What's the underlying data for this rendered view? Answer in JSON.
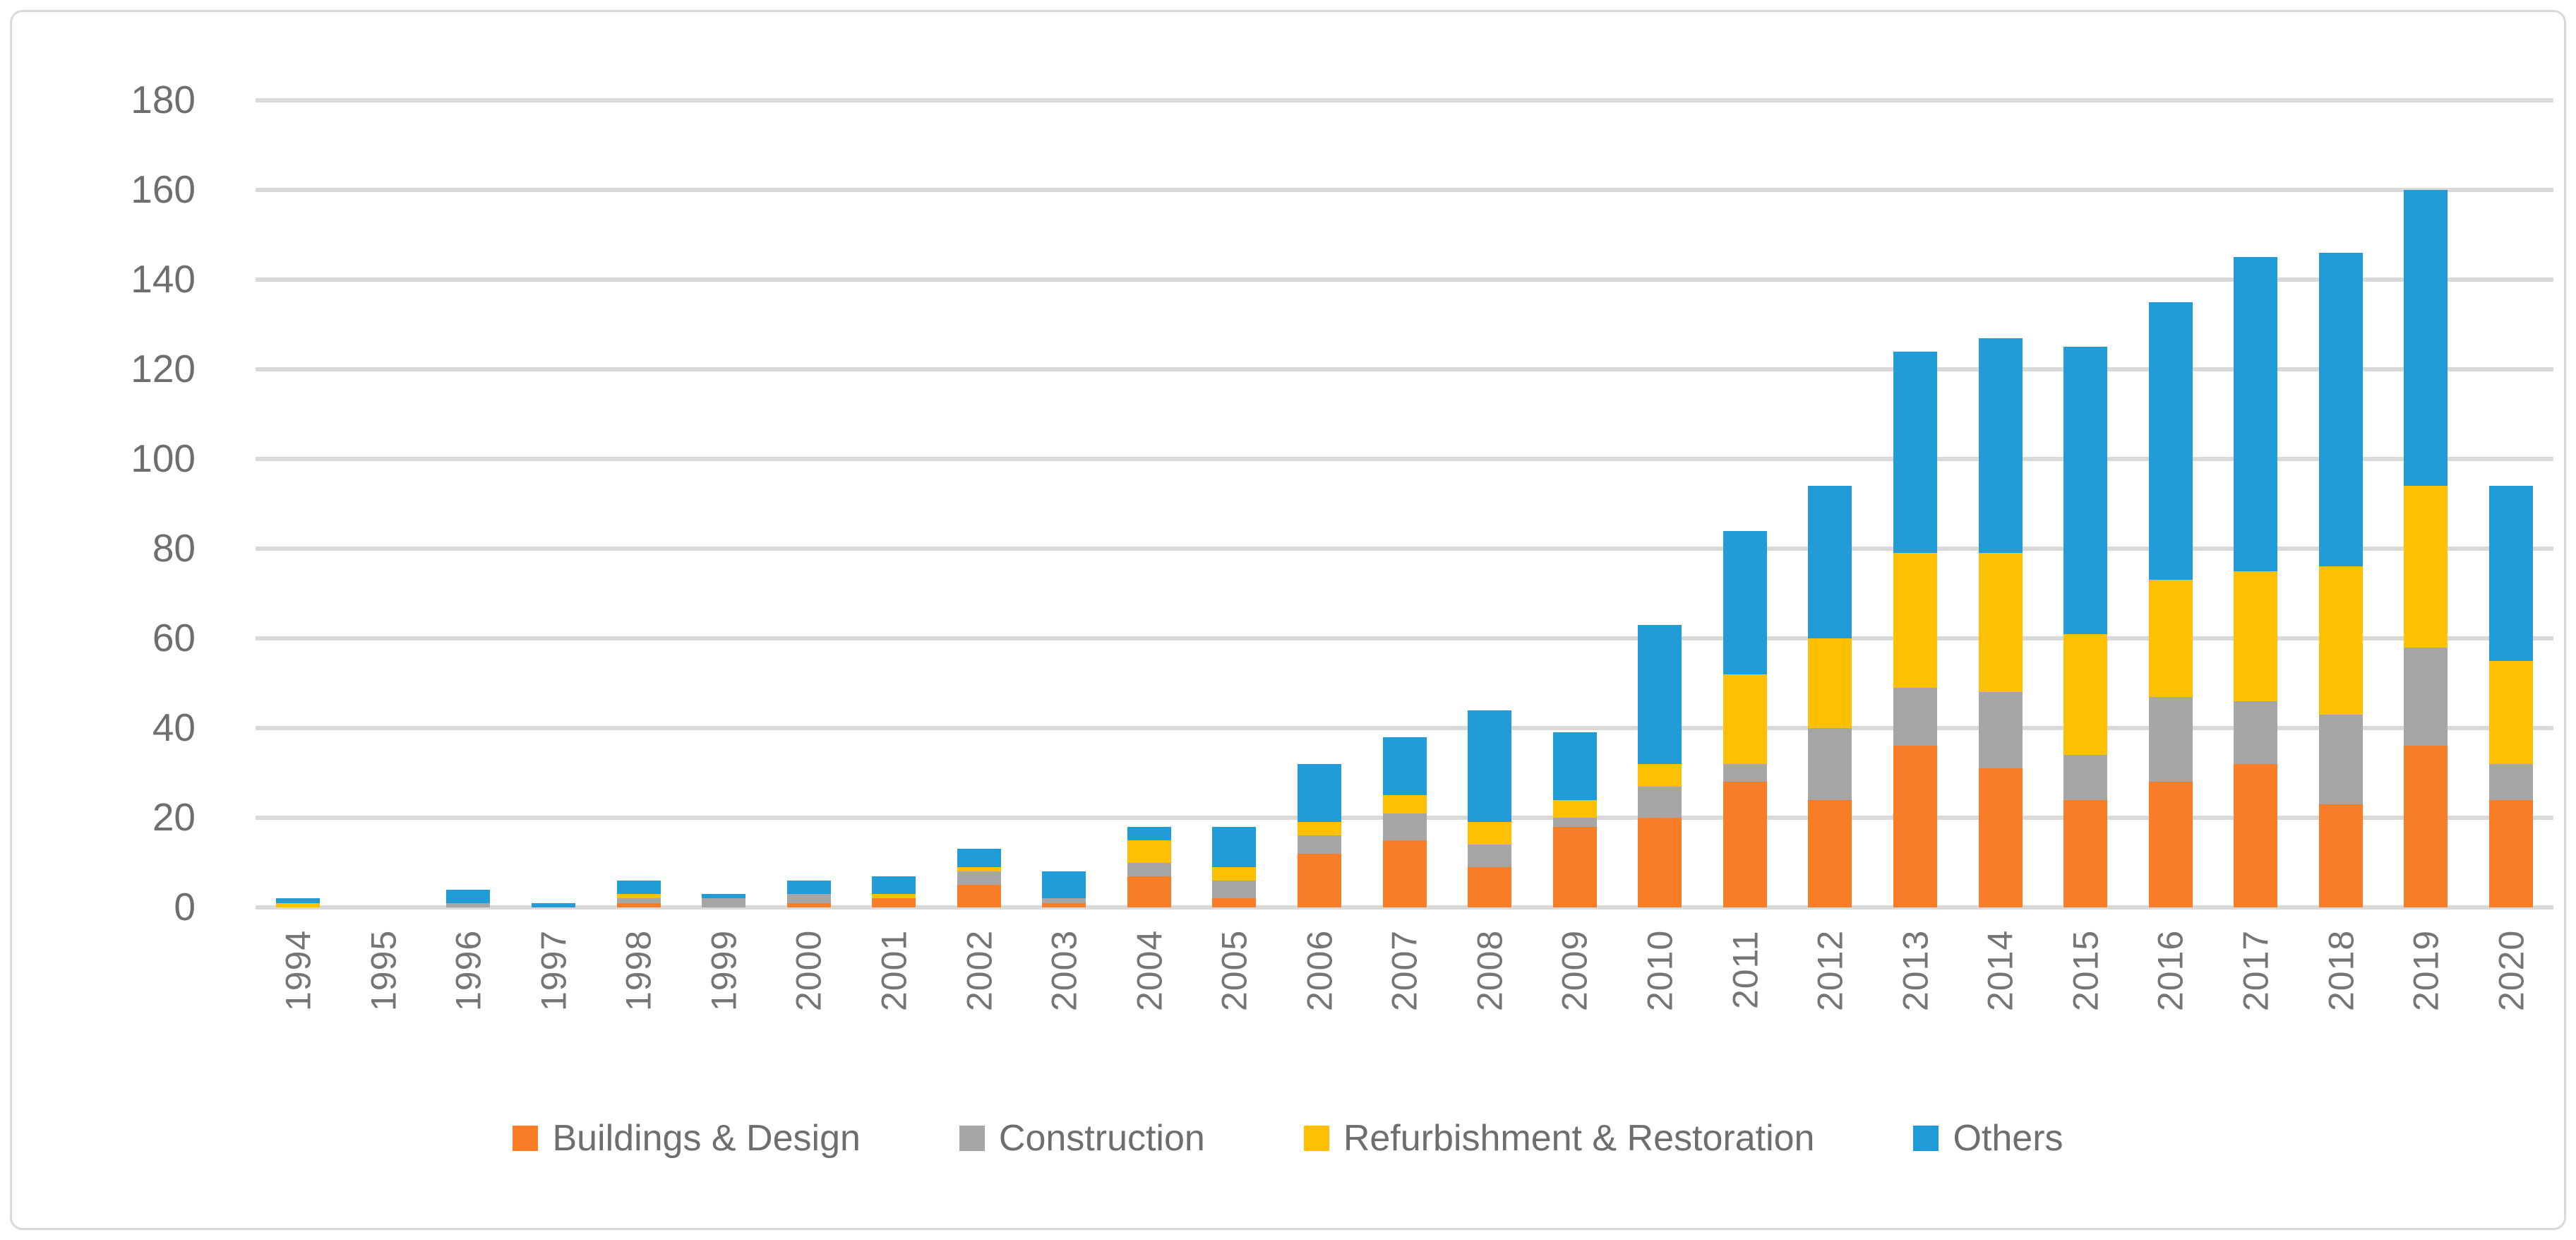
{
  "chart_data": {
    "type": "bar",
    "stacked": true,
    "title": "",
    "xlabel": "",
    "ylabel": "",
    "categories": [
      "1994",
      "1995",
      "1996",
      "1997",
      "1998",
      "1999",
      "2000",
      "2001",
      "2002",
      "2003",
      "2004",
      "2005",
      "2006",
      "2007",
      "2008",
      "2009",
      "2010",
      "2011",
      "2012",
      "2013",
      "2014",
      "2015",
      "2016",
      "2017",
      "2018",
      "2019",
      "2020"
    ],
    "series": [
      {
        "name": "Buildings & Design",
        "color": "#f97d26",
        "values": [
          0,
          0,
          0,
          0,
          1,
          0,
          1,
          2,
          5,
          1,
          7,
          2,
          12,
          15,
          9,
          18,
          20,
          28,
          24,
          36,
          31,
          24,
          28,
          32,
          23,
          36,
          24
        ]
      },
      {
        "name": "Construction",
        "color": "#a6a6a6",
        "values": [
          0,
          0,
          1,
          0,
          1,
          2,
          2,
          0,
          3,
          1,
          3,
          4,
          4,
          6,
          5,
          2,
          7,
          4,
          16,
          13,
          17,
          10,
          19,
          14,
          20,
          22,
          8
        ]
      },
      {
        "name": "Refurbishment & Restoration",
        "color": "#fec000",
        "values": [
          1,
          0,
          0,
          0,
          1,
          0,
          0,
          1,
          1,
          0,
          5,
          3,
          3,
          4,
          5,
          4,
          5,
          20,
          20,
          30,
          31,
          27,
          26,
          29,
          33,
          36,
          23
        ]
      },
      {
        "name": "Others",
        "color": "#219cd9",
        "values": [
          1,
          0,
          3,
          1,
          3,
          1,
          3,
          4,
          4,
          6,
          3,
          9,
          13,
          13,
          25,
          15,
          31,
          32,
          34,
          45,
          48,
          64,
          62,
          70,
          70,
          66,
          39
        ]
      }
    ],
    "totals": [
      2,
      0,
      4,
      1,
      6,
      3,
      6,
      7,
      13,
      8,
      18,
      18,
      32,
      38,
      44,
      39,
      63,
      84,
      94,
      124,
      127,
      125,
      135,
      145,
      146,
      160,
      94
    ],
    "ylim": [
      0,
      180
    ],
    "ytick_step": 20,
    "yticks": [
      "0",
      "20",
      "40",
      "60",
      "80",
      "100",
      "120",
      "140",
      "160",
      "180"
    ],
    "grid": true,
    "gridline_color": "#d9d9d9",
    "axis_text_color": "#6e6e6e",
    "legend_position": "bottom",
    "legend": [
      "Buildings & Design",
      "Construction",
      "Refurbishment & Restoration",
      "Others"
    ]
  }
}
